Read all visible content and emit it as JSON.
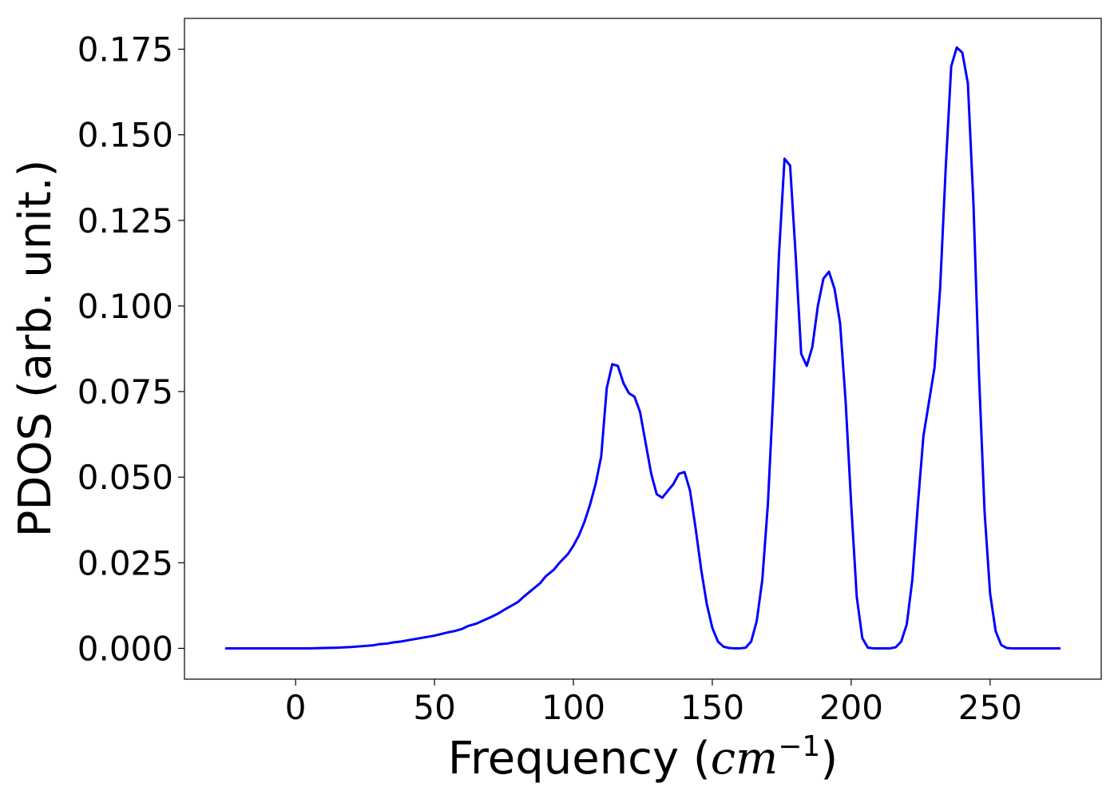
{
  "chart_data": {
    "type": "line",
    "xlabel_prefix": "Frequency (",
    "xlabel_math": "cm",
    "xlabel_exponent": "−1",
    "xlabel_suffix": ")",
    "ylabel": "PDOS (arb. unit.)",
    "xlim": [
      -40,
      290
    ],
    "ylim": [
      -0.009,
      0.184
    ],
    "xticks": [
      0,
      50,
      100,
      150,
      200,
      250
    ],
    "xtick_labels": [
      "0",
      "50",
      "100",
      "150",
      "200",
      "250"
    ],
    "yticks": [
      0.0,
      0.025,
      0.05,
      0.075,
      0.1,
      0.125,
      0.15,
      0.175
    ],
    "ytick_labels": [
      "0.000",
      "0.025",
      "0.050",
      "0.075",
      "0.100",
      "0.125",
      "0.150",
      "0.175"
    ],
    "grid": false,
    "line_color": "#0000ff",
    "series": [
      {
        "x": [
          -25,
          -20,
          -15,
          -10,
          -5,
          0,
          5,
          10,
          15,
          20,
          25,
          28,
          30,
          33,
          35,
          38,
          40,
          45,
          50,
          55,
          57,
          60,
          62,
          65,
          68,
          70,
          73,
          75,
          80,
          82,
          85,
          88,
          90,
          93,
          95,
          98,
          100,
          102,
          104,
          106,
          108,
          110,
          112,
          114,
          116,
          118,
          120,
          122,
          124,
          126,
          128,
          130,
          132,
          134,
          136,
          138,
          140,
          142,
          144,
          146,
          148,
          150,
          152,
          154,
          156,
          158,
          160,
          162,
          164,
          166,
          168,
          170,
          172,
          174,
          176,
          178,
          180,
          182,
          184,
          186,
          188,
          190,
          192,
          194,
          196,
          198,
          200,
          202,
          204,
          206,
          208,
          210,
          212,
          214,
          216,
          218,
          220,
          222,
          224,
          226,
          228,
          230,
          232,
          234,
          236,
          238,
          240,
          242,
          244,
          246,
          248,
          250,
          252,
          254,
          256,
          258,
          260,
          265,
          270,
          275
        ],
        "y": [
          0,
          0,
          0,
          0,
          0,
          0,
          0,
          0.0001,
          0.0002,
          0.0004,
          0.0007,
          0.0009,
          0.0012,
          0.0014,
          0.0017,
          0.002,
          0.0023,
          0.003,
          0.0037,
          0.0047,
          0.005,
          0.0057,
          0.0065,
          0.0072,
          0.0083,
          0.009,
          0.0102,
          0.0112,
          0.0135,
          0.015,
          0.017,
          0.019,
          0.021,
          0.023,
          0.025,
          0.0275,
          0.03,
          0.033,
          0.037,
          0.042,
          0.048,
          0.056,
          0.076,
          0.083,
          0.0825,
          0.0775,
          0.0745,
          0.0735,
          0.069,
          0.06,
          0.051,
          0.045,
          0.044,
          0.046,
          0.048,
          0.051,
          0.0515,
          0.046,
          0.035,
          0.023,
          0.013,
          0.006,
          0.002,
          0.0005,
          0.0001,
          0,
          0,
          0.0002,
          0.002,
          0.008,
          0.02,
          0.042,
          0.075,
          0.115,
          0.143,
          0.141,
          0.115,
          0.086,
          0.0825,
          0.088,
          0.1,
          0.108,
          0.11,
          0.105,
          0.095,
          0.072,
          0.042,
          0.015,
          0.003,
          0.0002,
          0,
          0,
          0,
          0,
          0.0003,
          0.002,
          0.007,
          0.02,
          0.042,
          0.062,
          0.072,
          0.082,
          0.105,
          0.14,
          0.17,
          0.1755,
          0.174,
          0.165,
          0.13,
          0.08,
          0.04,
          0.016,
          0.005,
          0.001,
          0.0001,
          0,
          0,
          0,
          0,
          0
        ]
      }
    ]
  }
}
